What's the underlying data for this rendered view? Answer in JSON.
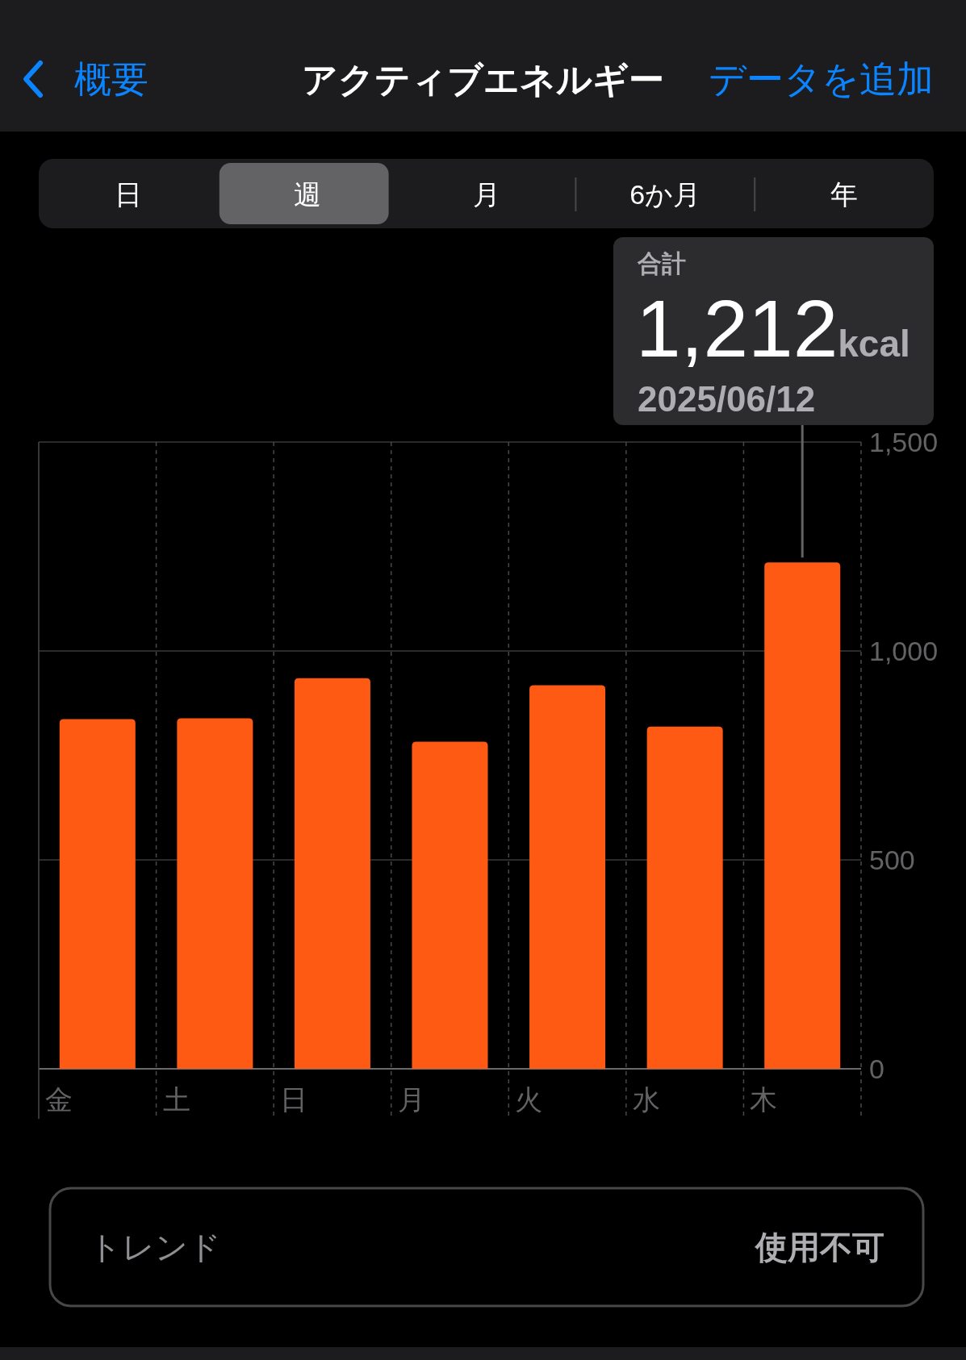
{
  "chart_data": {
    "type": "bar",
    "title": "アクティブエネルギー",
    "categories": [
      "金",
      "土",
      "日",
      "月",
      "火",
      "水",
      "木"
    ],
    "values": [
      837,
      839,
      935,
      783,
      918,
      819,
      1212
    ],
    "color": "#ff5a14",
    "ylim": [
      0,
      1500
    ],
    "yticks": [
      0,
      500,
      {
        "value": 1000,
        "label": "1,000"
      },
      {
        "value": 1500,
        "label": "1,500"
      }
    ],
    "grid": true,
    "annotations": [
      "概要",
      "データを追加",
      "日",
      "週",
      "月",
      "6か月",
      "年",
      "合計",
      {
        "text": "1,212kcal",
        "x": "木",
        "y": 1212
      },
      "2025/06/12",
      "トレンド",
      "使用不可"
    ]
  }
}
